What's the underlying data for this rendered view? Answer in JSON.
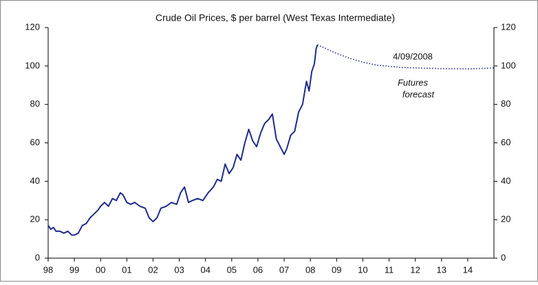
{
  "chart_data": {
    "type": "line",
    "title": "Crude Oil Prices, $ per barrel (West Texas Intermediate)",
    "annotations": [
      "4/09/2008",
      "Futures",
      "forecast"
    ],
    "xlim": [
      1998,
      2015
    ],
    "xticks": [
      {
        "value": 1998,
        "label": "98"
      },
      {
        "value": 1999,
        "label": "99"
      },
      {
        "value": 2000,
        "label": "00"
      },
      {
        "value": 2001,
        "label": "01"
      },
      {
        "value": 2002,
        "label": "02"
      },
      {
        "value": 2003,
        "label": "03"
      },
      {
        "value": 2004,
        "label": "04"
      },
      {
        "value": 2005,
        "label": "05"
      },
      {
        "value": 2006,
        "label": "06"
      },
      {
        "value": 2007,
        "label": "07"
      },
      {
        "value": 2008,
        "label": "08"
      },
      {
        "value": 2009,
        "label": "09"
      },
      {
        "value": 2010,
        "label": "10"
      },
      {
        "value": 2011,
        "label": "11"
      },
      {
        "value": 2012,
        "label": "12"
      },
      {
        "value": 2013,
        "label": "13"
      },
      {
        "value": 2014,
        "label": "14"
      }
    ],
    "ylim": [
      0,
      120
    ],
    "yticks": [
      0,
      20,
      40,
      60,
      80,
      100,
      120
    ],
    "y2lim": [
      0,
      120
    ],
    "y2ticks": [
      0,
      20,
      40,
      60,
      80,
      100,
      120
    ],
    "series": [
      {
        "color": "#1f2a8a",
        "line_style": "solid",
        "x": [
          1998.0,
          1998.1,
          1998.2,
          1998.3,
          1998.45,
          1998.6,
          1998.75,
          1998.9,
          1999.0,
          1999.15,
          1999.3,
          1999.45,
          1999.6,
          1999.75,
          1999.9,
          2000.0,
          2000.15,
          2000.3,
          2000.45,
          2000.6,
          2000.75,
          2000.85,
          2001.0,
          2001.15,
          2001.3,
          2001.5,
          2001.7,
          2001.85,
          2002.0,
          2002.15,
          2002.3,
          2002.5,
          2002.7,
          2002.9,
          2003.05,
          2003.2,
          2003.35,
          2003.5,
          2003.7,
          2003.9,
          2004.1,
          2004.3,
          2004.45,
          2004.6,
          2004.75,
          2004.9,
          2005.05,
          2005.2,
          2005.35,
          2005.5,
          2005.65,
          2005.8,
          2005.95,
          2006.1,
          2006.25,
          2006.4,
          2006.55,
          2006.7,
          2006.85,
          2007.0,
          2007.1,
          2007.25,
          2007.4,
          2007.55,
          2007.7,
          2007.85,
          2007.95,
          2008.05,
          2008.15,
          2008.22,
          2008.27
        ],
        "values": [
          17,
          15,
          16,
          14,
          14,
          13,
          14,
          12,
          12,
          13,
          17,
          18,
          21,
          23,
          25,
          27,
          29,
          27,
          31,
          30,
          34,
          33,
          29,
          28,
          29,
          27,
          26,
          21,
          19,
          21,
          26,
          27,
          29,
          28,
          34,
          37,
          29,
          30,
          31,
          30,
          34,
          37,
          41,
          40,
          49,
          44,
          47,
          54,
          51,
          60,
          67,
          61,
          58,
          65,
          70,
          72,
          75,
          62,
          58,
          54,
          57,
          64,
          66,
          76,
          80,
          92,
          87,
          97,
          101,
          109,
          111
        ]
      },
      {
        "color": "#1f2a8a",
        "line_style": "dotted",
        "x": [
          2008.27,
          2008.6,
          2009.0,
          2009.5,
          2010.0,
          2010.5,
          2011.0,
          2011.5,
          2012.0,
          2013.0,
          2014.0,
          2014.5,
          2015.0
        ],
        "values": [
          111,
          109,
          106.5,
          104,
          102,
          100.5,
          99.8,
          99.2,
          99,
          98.6,
          98.5,
          98.7,
          99
        ]
      }
    ]
  }
}
